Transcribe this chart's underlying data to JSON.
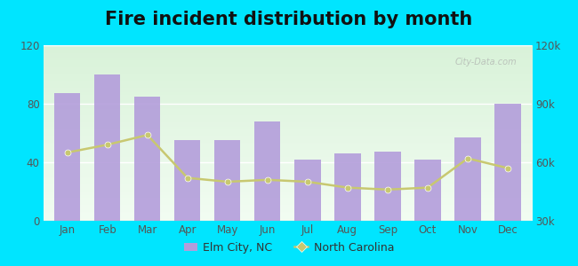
{
  "title": "Fire incident distribution by month",
  "months": [
    "Jan",
    "Feb",
    "Mar",
    "Apr",
    "May",
    "Jun",
    "Jul",
    "Aug",
    "Sep",
    "Oct",
    "Nov",
    "Dec"
  ],
  "elm_city_values": [
    87,
    100,
    85,
    55,
    55,
    68,
    42,
    46,
    47,
    42,
    57,
    80
  ],
  "nc_values": [
    65000,
    69000,
    74000,
    52000,
    50000,
    51000,
    50000,
    47000,
    46000,
    47000,
    62000,
    57000
  ],
  "bar_color": "#b39ddb",
  "line_color": "#c8c870",
  "line_marker_color": "#c8c870",
  "left_ylim": [
    0,
    120
  ],
  "right_ylim": [
    30000,
    120000
  ],
  "left_yticks": [
    0,
    40,
    80,
    120
  ],
  "right_yticks": [
    30000,
    60000,
    90000,
    120000
  ],
  "right_yticklabels": [
    "30k",
    "60k",
    "90k",
    "120k"
  ],
  "outer_background": "#00e5ff",
  "plot_bg_color": "#e8f5e9",
  "legend_elm_label": "Elm City, NC",
  "legend_nc_label": "North Carolina",
  "title_fontsize": 15,
  "watermark_text": "City-Data.com"
}
